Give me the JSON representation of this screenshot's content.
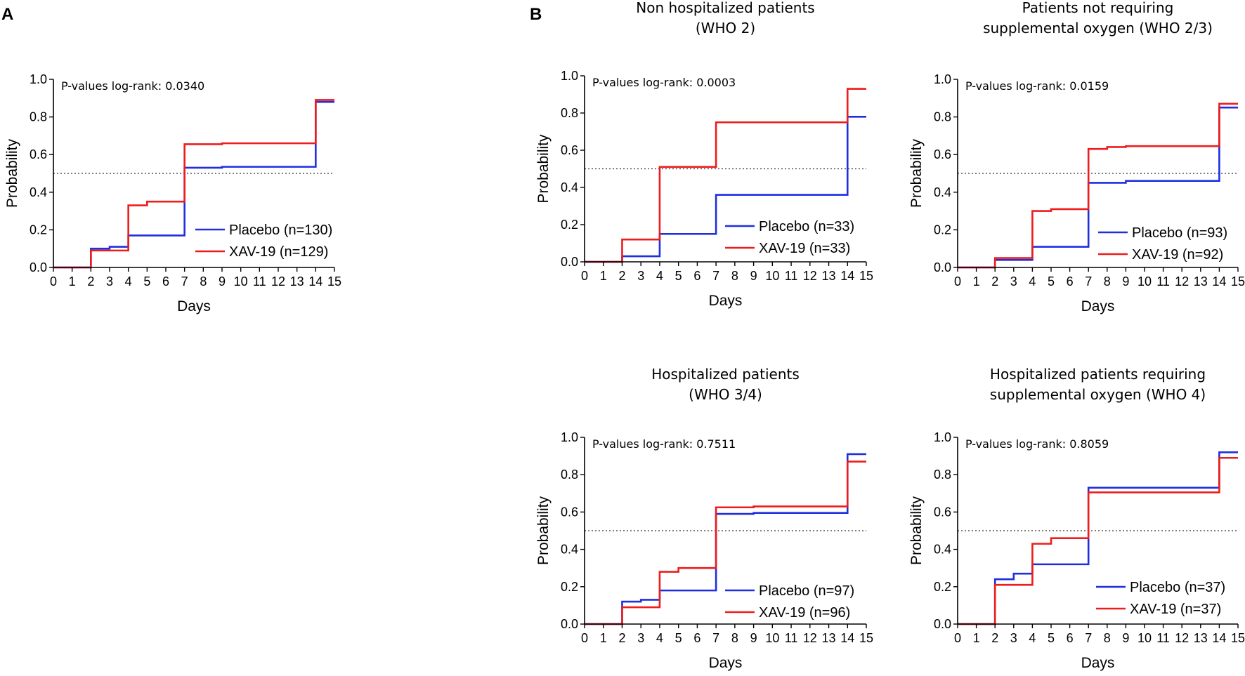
{
  "figure": {
    "panel_labels": [
      "A",
      "B"
    ]
  },
  "chart_data": [
    {
      "type": "line",
      "title_lines": [],
      "pvalue_text": "P-values log-rank: 0.0340",
      "xlabel": "Days",
      "ylabel": "Probability",
      "xlim": [
        0,
        15
      ],
      "ylim": [
        0,
        1.0
      ],
      "xticks": [
        0,
        1,
        2,
        3,
        4,
        5,
        6,
        7,
        8,
        9,
        10,
        11,
        12,
        13,
        14,
        15
      ],
      "yticks": [
        0.0,
        0.2,
        0.4,
        0.6,
        0.8,
        1.0
      ],
      "reference_line": 0.5,
      "series": [
        {
          "name": "Placebo (n=130)",
          "color": "#1f2fe0",
          "x": [
            0,
            2,
            3,
            4,
            7,
            9,
            14,
            15
          ],
          "y": [
            0.0,
            0.1,
            0.11,
            0.17,
            0.53,
            0.535,
            0.88,
            0.88
          ]
        },
        {
          "name": "XAV-19 (n=129)",
          "color": "#ee1c1c",
          "x": [
            0,
            2,
            4,
            5,
            7,
            9,
            14,
            15
          ],
          "y": [
            0.0,
            0.09,
            0.33,
            0.35,
            0.655,
            0.66,
            0.89,
            0.89
          ]
        }
      ]
    },
    {
      "type": "line",
      "title_lines": [
        "Non hospitalized patients",
        "(WHO 2)"
      ],
      "pvalue_text": "P-values log-rank: 0.0003",
      "xlabel": "Days",
      "ylabel": "Probability",
      "xlim": [
        0,
        15
      ],
      "ylim": [
        0,
        1.0
      ],
      "xticks": [
        0,
        1,
        2,
        3,
        4,
        5,
        6,
        7,
        8,
        9,
        10,
        11,
        12,
        13,
        14,
        15
      ],
      "yticks": [
        0.0,
        0.2,
        0.4,
        0.6,
        0.8,
        1.0
      ],
      "reference_line": 0.5,
      "series": [
        {
          "name": "Placebo (n=33)",
          "color": "#1f2fe0",
          "x": [
            0,
            2,
            4,
            7,
            14,
            15
          ],
          "y": [
            0.0,
            0.03,
            0.15,
            0.36,
            0.78,
            0.78
          ]
        },
        {
          "name": "XAV-19 (n=33)",
          "color": "#ee1c1c",
          "x": [
            0,
            2,
            4,
            7,
            14,
            15
          ],
          "y": [
            0.0,
            0.12,
            0.51,
            0.75,
            0.93,
            0.93
          ]
        }
      ]
    },
    {
      "type": "line",
      "title_lines": [
        "Patients not requiring",
        "supplemental oxygen (WHO 2/3)"
      ],
      "pvalue_text": "P-values log-rank: 0.0159",
      "xlabel": "Days",
      "ylabel": "Probability",
      "xlim": [
        0,
        15
      ],
      "ylim": [
        0,
        1.0
      ],
      "xticks": [
        0,
        1,
        2,
        3,
        4,
        5,
        6,
        7,
        8,
        9,
        10,
        11,
        12,
        13,
        14,
        15
      ],
      "yticks": [
        0.0,
        0.2,
        0.4,
        0.6,
        0.8,
        1.0
      ],
      "reference_line": 0.5,
      "series": [
        {
          "name": "Placebo (n=93)",
          "color": "#1f2fe0",
          "x": [
            0,
            2,
            4,
            7,
            9,
            14,
            15
          ],
          "y": [
            0.0,
            0.04,
            0.11,
            0.45,
            0.46,
            0.85,
            0.85
          ]
        },
        {
          "name": "XAV-19 (n=92)",
          "color": "#ee1c1c",
          "x": [
            0,
            2,
            4,
            5,
            7,
            8,
            9,
            14,
            15
          ],
          "y": [
            0.0,
            0.05,
            0.3,
            0.31,
            0.63,
            0.64,
            0.645,
            0.87,
            0.87
          ]
        }
      ]
    },
    {
      "type": "line",
      "title_lines": [
        "Hospitalized patients",
        "(WHO 3/4)"
      ],
      "pvalue_text": "P-values log-rank: 0.7511",
      "xlabel": "Days",
      "ylabel": "Probability",
      "xlim": [
        0,
        15
      ],
      "ylim": [
        0,
        1.0
      ],
      "xticks": [
        0,
        1,
        2,
        3,
        4,
        5,
        6,
        7,
        8,
        9,
        10,
        11,
        12,
        13,
        14,
        15
      ],
      "yticks": [
        0.0,
        0.2,
        0.4,
        0.6,
        0.8,
        1.0
      ],
      "reference_line": 0.5,
      "series": [
        {
          "name": "Placebo (n=97)",
          "color": "#1f2fe0",
          "x": [
            0,
            2,
            3,
            4,
            7,
            9,
            14,
            15
          ],
          "y": [
            0.0,
            0.12,
            0.13,
            0.18,
            0.59,
            0.595,
            0.91,
            0.91
          ]
        },
        {
          "name": "XAV-19 (n=96)",
          "color": "#ee1c1c",
          "x": [
            0,
            2,
            4,
            5,
            7,
            9,
            14,
            15
          ],
          "y": [
            0.0,
            0.09,
            0.28,
            0.3,
            0.625,
            0.63,
            0.87,
            0.87
          ]
        }
      ]
    },
    {
      "type": "line",
      "title_lines": [
        "Hospitalized patients requiring",
        "supplemental oxygen (WHO 4)"
      ],
      "pvalue_text": "P-values log-rank: 0.8059",
      "xlabel": "Days",
      "ylabel": "Probability",
      "xlim": [
        0,
        15
      ],
      "ylim": [
        0,
        1.0
      ],
      "xticks": [
        0,
        1,
        2,
        3,
        4,
        5,
        6,
        7,
        8,
        9,
        10,
        11,
        12,
        13,
        14,
        15
      ],
      "yticks": [
        0.0,
        0.2,
        0.4,
        0.6,
        0.8,
        1.0
      ],
      "reference_line": 0.5,
      "series": [
        {
          "name": "Placebo (n=37)",
          "color": "#1f2fe0",
          "x": [
            0,
            2,
            3,
            4,
            7,
            14,
            15
          ],
          "y": [
            0.0,
            0.24,
            0.27,
            0.32,
            0.73,
            0.92,
            0.92
          ]
        },
        {
          "name": "XAV-19 (n=37)",
          "color": "#ee1c1c",
          "x": [
            0,
            2,
            4,
            5,
            7,
            14,
            15
          ],
          "y": [
            0.0,
            0.21,
            0.43,
            0.46,
            0.705,
            0.89,
            0.89
          ]
        }
      ]
    }
  ]
}
